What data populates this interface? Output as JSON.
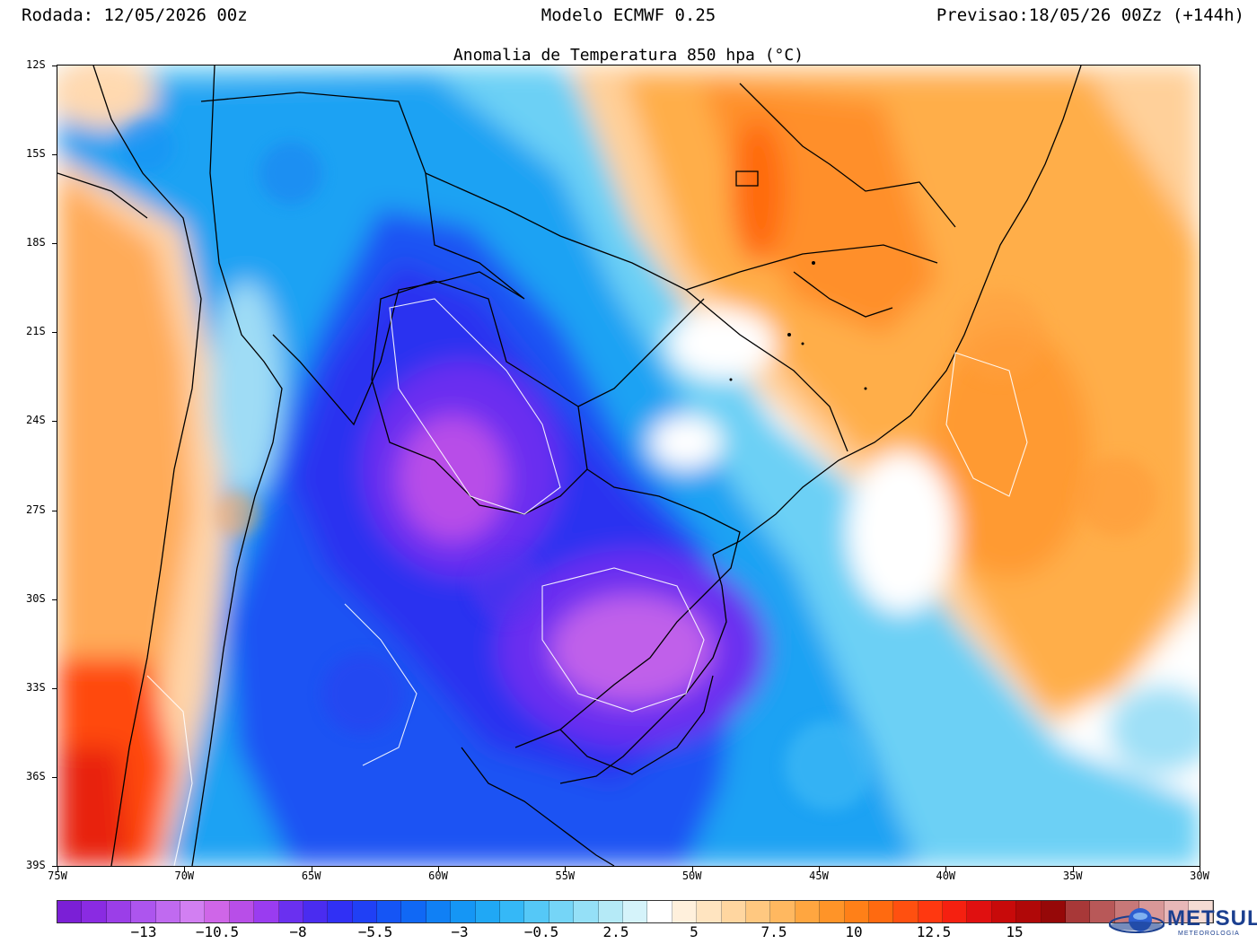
{
  "header": {
    "run": "Rodada: 12/05/2026 00z",
    "model": "Modelo ECMWF 0.25",
    "forecast": "Previsao:18/05/26 00Zz (+144h)"
  },
  "map": {
    "title": "Anomalia de Temperatura 850 hpa (°C)",
    "lat_labels": [
      "12S",
      "15S",
      "18S",
      "21S",
      "24S",
      "27S",
      "30S",
      "33S",
      "36S",
      "39S"
    ],
    "lon_labels": [
      "75W",
      "70W",
      "65W",
      "60W",
      "55W",
      "50W",
      "45W",
      "40W",
      "35W",
      "30W"
    ],
    "lat_range_deg": [
      -12,
      -39
    ],
    "lon_range_deg": [
      -75,
      -30
    ]
  },
  "colorbar": {
    "labels": [
      "−13",
      "−10.5",
      "−8",
      "−5.5",
      "−3",
      "−0.5",
      "2.5",
      "5",
      "7.5",
      "10",
      "12.5",
      "15"
    ],
    "colors": [
      "#7b1fd6",
      "#8a2be2",
      "#9b3ee8",
      "#ad55ee",
      "#c06af0",
      "#d27ff2",
      "#cf66e8",
      "#b84ee8",
      "#9a3cf0",
      "#6a30f0",
      "#4a2cf0",
      "#3030f5",
      "#2040f5",
      "#1555f5",
      "#1068f5",
      "#1080f5",
      "#1596f5",
      "#20a8f5",
      "#35b8f7",
      "#55c8f7",
      "#75d5f7",
      "#95e0f7",
      "#b5eaf7",
      "#d5f3fa",
      "#ffffff",
      "#fff0dc",
      "#ffe4c0",
      "#ffd6a0",
      "#ffc880",
      "#ffb860",
      "#ffa640",
      "#ff9428",
      "#ff8018",
      "#ff6a10",
      "#ff5010",
      "#ff3810",
      "#f52010",
      "#e01010",
      "#c80a0a",
      "#b00808",
      "#960808",
      "#a83838",
      "#b85858",
      "#c87878",
      "#d89898",
      "#e8b8b8",
      "#f5dcd4"
    ]
  },
  "logo": {
    "name": "METSUL",
    "subtitle": "METEOROLOGIA"
  }
}
